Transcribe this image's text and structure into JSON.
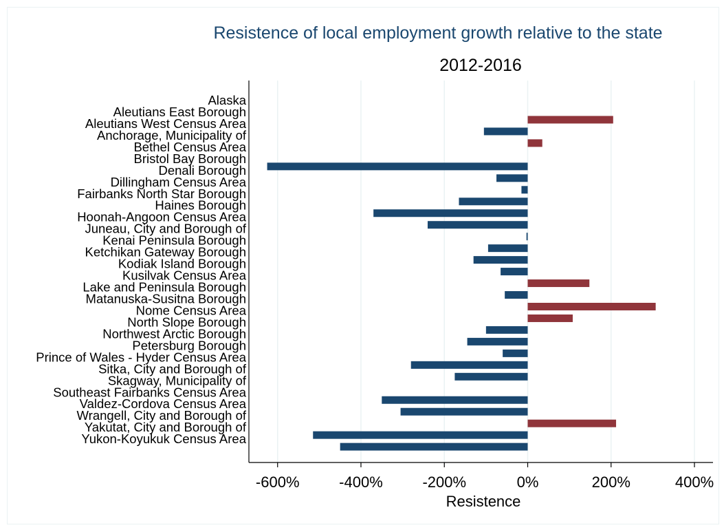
{
  "chart_data": {
    "type": "bar",
    "orientation": "horizontal",
    "title": "Resistence of local employment growth relative to the state",
    "subtitle": "2012-2016",
    "xlabel": "Resistence",
    "ylabel": "",
    "xlim": [
      -670,
      420
    ],
    "xticks": [
      -600,
      -400,
      -200,
      0,
      200,
      400
    ],
    "xtick_labels": [
      "-600%",
      "-400%",
      "-200%",
      "0%",
      "200%",
      "400%"
    ],
    "grid": "vertical",
    "colors": {
      "positive": "#90353b",
      "negative": "#1a476f",
      "title": "#1a476f",
      "grid": "#eaf2f3"
    },
    "categories": [
      "Alaska",
      "Aleutians East Borough",
      "Aleutians West Census Area",
      "Anchorage, Municipality of",
      "Bethel Census Area",
      "Bristol Bay Borough",
      "Denali Borough",
      "Dillingham Census Area",
      "Fairbanks North Star Borough",
      "Haines Borough",
      "Hoonah-Angoon Census Area",
      "Juneau, City and Borough of",
      "Kenai Peninsula Borough",
      "Ketchikan Gateway Borough",
      "Kodiak Island Borough",
      "Kusilvak Census Area",
      "Lake and Peninsula Borough",
      "Matanuska-Susitna Borough",
      "Nome Census Area",
      "North Slope Borough",
      "Northwest Arctic Borough",
      "Petersburg Borough",
      "Prince of Wales - Hyder Census Area",
      "Sitka, City and Borough of",
      "Skagway, Municipality of",
      "Southeast Fairbanks Census Area",
      "Valdez-Cordova Census Area",
      "Wrangell, City and Borough of",
      "Yakutat, City and Borough of",
      "Yukon-Koyukuk Census Area"
    ],
    "values": [
      0,
      205,
      -105,
      35,
      0,
      -625,
      -75,
      -15,
      -165,
      -370,
      -240,
      -3,
      -95,
      -130,
      -65,
      148,
      -55,
      307,
      108,
      -100,
      -145,
      -60,
      -280,
      -175,
      0,
      -350,
      -305,
      212,
      -515,
      -450
    ]
  }
}
